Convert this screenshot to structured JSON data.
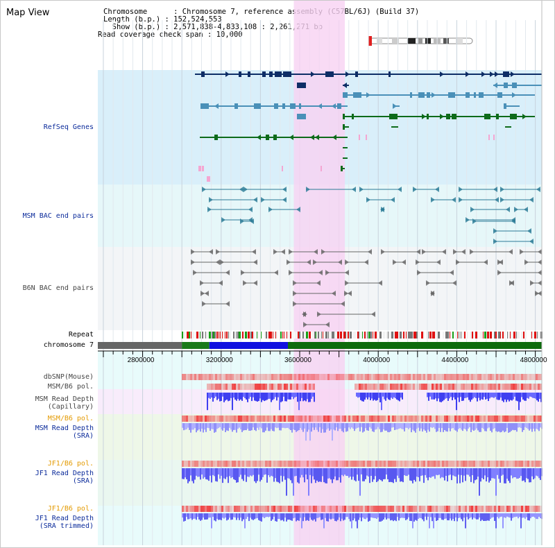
{
  "view": {
    "title": "Map View",
    "chromosome_line": "Chromosome      : Chromosome 7, reference assembly (C57BL/6J) (Build 37)",
    "length_line": "Length (b.p.) : 152,524,553",
    "show_line": "  Show (b.p.) : 2,571,838-4,833,108 : 2,261,271 bp",
    "coverage_line": "Read coverage check span : 10,000"
  },
  "colors": {
    "refseq_bg": "#d9effa",
    "bac_bg": "#e6f7f9",
    "b6n_bg": "#f3f5f7",
    "highlight": "#f7d2f2",
    "track_blue": "#0a2a9a",
    "track_orange": "#e39a00",
    "gene_navy": "#0d2d66",
    "gene_light": "#4a90b8",
    "gene_green": "#0d6b1a",
    "depth_blue": "#3f3ff0",
    "depth_light": "#8a8aff",
    "pol_red": "#f04040"
  },
  "tracks": {
    "refseq": "RefSeq Genes",
    "msm_bac": "MSM BAC end pairs",
    "b6n_bac": "B6N BAC end pairs",
    "repeat": "Repeat",
    "chromosome": "chromosome 7",
    "dbsnp": "dbSNP(Mouse)",
    "msm_pol1": "MSM/B6 pol.",
    "msm_depth_cap": "MSM Read Depth\n(Capillary)",
    "msm_pol2": "MSM/B6 pol.",
    "msm_depth_sra": "MSM Read Depth\n(SRA)",
    "jf1_pol1": "JF1/B6 pol.",
    "jf1_depth_sra": "JF1 Read Depth\n(SRA)",
    "jf1_pol2": "JF1/B6 pol.",
    "jf1_depth_trim": "JF1 Read Depth\n(SRA trimmed)"
  },
  "axis": {
    "ticks": [
      {
        "label": "2800000",
        "value": 2800000
      },
      {
        "label": "3200000",
        "value": 3200000
      },
      {
        "label": "3600000",
        "value": 3600000
      },
      {
        "label": "4000000",
        "value": 4000000
      },
      {
        "label": "4400000",
        "value": 4400000
      },
      {
        "label": "4800000",
        "value": 4800000
      }
    ],
    "start": 2571838,
    "end": 4833108
  },
  "highlight_region": {
    "start": 3570000,
    "end": 3830000
  },
  "chromosome_segments": [
    {
      "start": 2571838,
      "end": 3000000,
      "color": "#666666"
    },
    {
      "start": 3000000,
      "end": 3140000,
      "color": "#1a7a1a"
    },
    {
      "start": 3140000,
      "end": 3540000,
      "color": "#1010e0"
    },
    {
      "start": 3540000,
      "end": 4833108,
      "color": "#0d6b0d"
    }
  ]
}
